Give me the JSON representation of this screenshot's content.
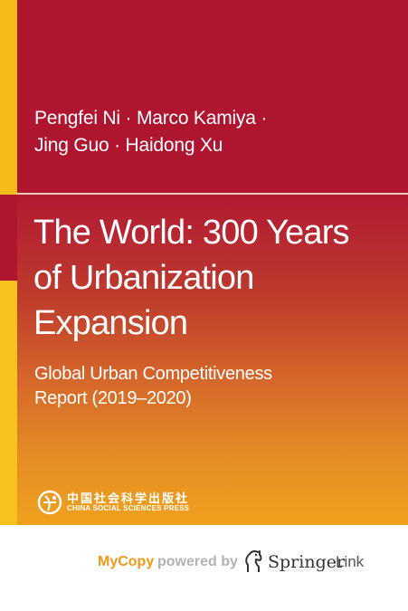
{
  "cover": {
    "authors_lines": [
      "Pengfei Ni · Marco Kamiya ·",
      "Jing Guo · Haidong Xu"
    ],
    "title_lines": [
      "The World: 300 Years",
      "of Urbanization",
      "Expansion"
    ],
    "subtitle_lines": [
      "Global Urban Competitiveness",
      "Report (2019–2020)"
    ],
    "publisher": {
      "chinese_name": "中国社会科学出版社",
      "english_name": "CHINA SOCIAL SCIENCES PRESS",
      "logo_icon": "publisher-logo-icon"
    },
    "colors": {
      "top_band": "#b01530",
      "accent_strip": "#f6ba18",
      "gradient_start": "#b21932",
      "gradient_end": "#efa21c"
    }
  },
  "footer": {
    "mycopy_label": "MyCopy",
    "powered_label": "powered by",
    "springer_label": "Springer",
    "link_label": "Link",
    "springer_icon": "springer-horse-icon",
    "colors": {
      "mycopy": "#f39a1a",
      "powered": "#b2b2b2",
      "springer": "#333333"
    }
  }
}
